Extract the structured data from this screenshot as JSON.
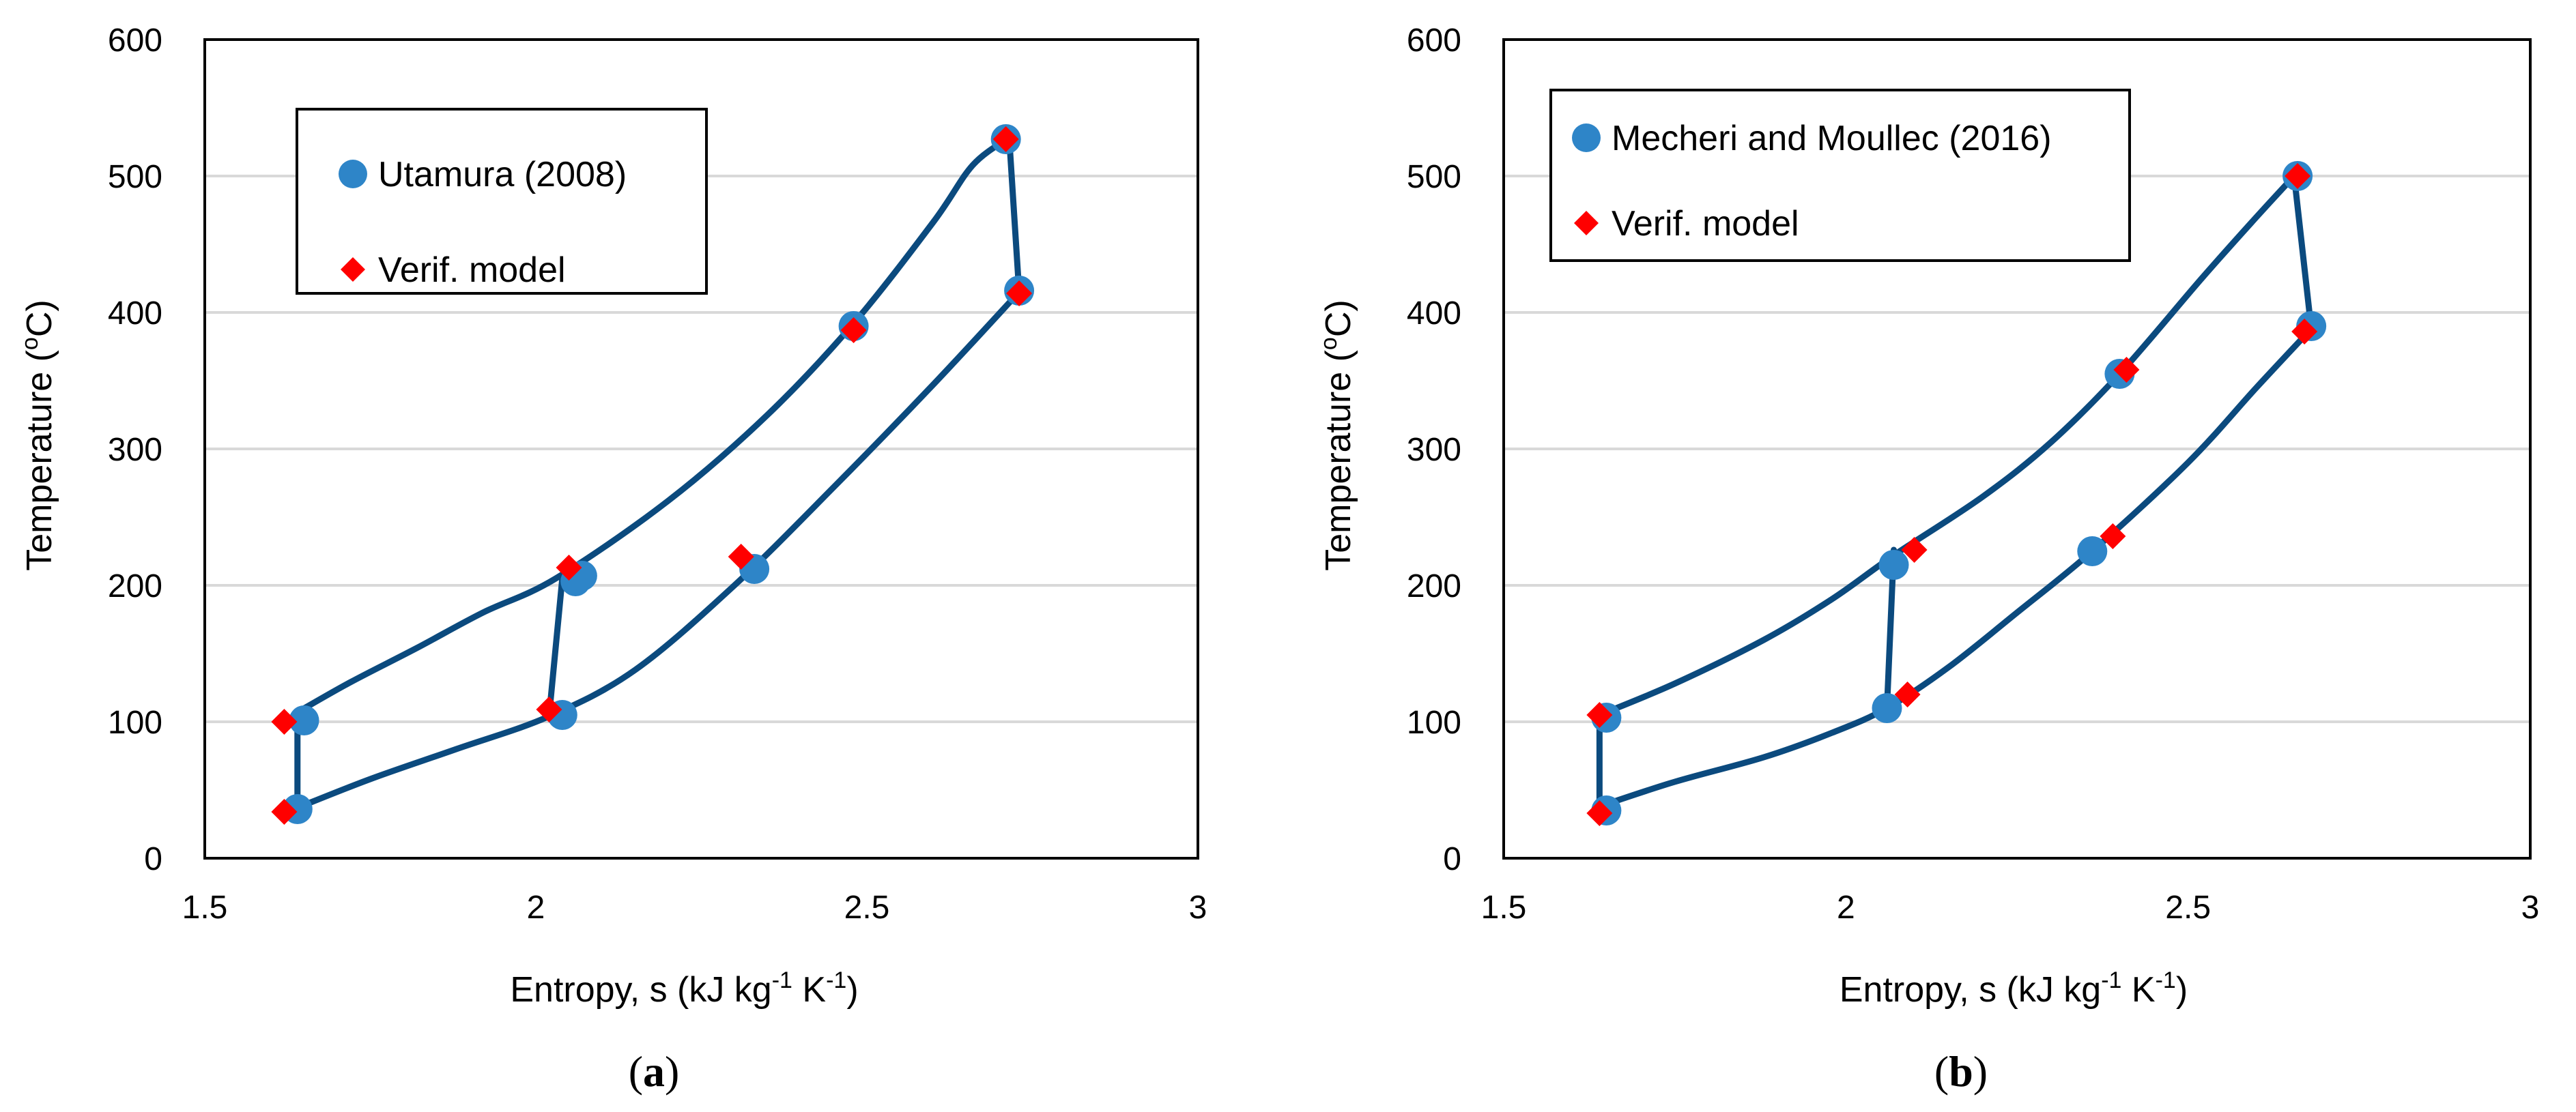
{
  "chart_data": [
    {
      "type": "scatter",
      "panel_label": "a",
      "xlabel": "Entropy, s (kJ kg-1 K-1)",
      "xlabel_parts": [
        "Entropy, s (kJ kg",
        "-1",
        " K",
        "-1",
        ")"
      ],
      "ylabel": "Temperature (oC)",
      "ylabel_parts": [
        "Temperature (",
        "o",
        "C)"
      ],
      "xlim": [
        1.5,
        3
      ],
      "ylim": [
        0,
        600
      ],
      "xticks": [
        "1.5",
        "2",
        "2.5",
        "3"
      ],
      "yticks": [
        "0",
        "100",
        "200",
        "300",
        "400",
        "500",
        "600"
      ],
      "grid": "horizontal",
      "legend_position": "top-left",
      "cycle_line": {
        "color": "#0b4a7e",
        "high_curve": [
          [
            1.64,
            107
          ],
          [
            1.72,
            129
          ],
          [
            1.82,
            154
          ],
          [
            1.92,
            180
          ],
          [
            2.03,
            205
          ],
          [
            2.2,
            262
          ],
          [
            2.35,
            325
          ],
          [
            2.48,
            392
          ],
          [
            2.6,
            466
          ],
          [
            2.66,
            508
          ],
          [
            2.715,
            528
          ]
        ],
        "turbine": [
          [
            2.715,
            528
          ],
          [
            2.73,
            415
          ]
        ],
        "low_curve": [
          [
            1.64,
            37
          ],
          [
            1.75,
            58
          ],
          [
            1.88,
            80
          ],
          [
            2.02,
            104
          ],
          [
            2.15,
            138
          ],
          [
            2.3,
            200
          ],
          [
            2.45,
            272
          ],
          [
            2.6,
            347
          ],
          [
            2.73,
            415
          ]
        ],
        "verticals": [
          [
            [
              1.64,
              37
            ],
            [
              1.64,
              107
            ]
          ],
          [
            [
              2.02,
              104
            ],
            [
              2.04,
              205
            ]
          ]
        ]
      },
      "series": [
        {
          "name": "Utamura (2008)",
          "marker": "circle",
          "color": "#2e85c8",
          "x": [
            1.64,
            1.65,
            2.04,
            2.06,
            2.07,
            2.33,
            2.48,
            2.71,
            2.73
          ],
          "y": [
            36,
            101,
            105,
            203,
            207,
            212,
            390,
            527,
            416
          ]
        },
        {
          "name": "Verif. model",
          "marker": "diamond",
          "color": "#ff0000",
          "x": [
            1.62,
            1.62,
            2.02,
            2.05,
            2.31,
            2.48,
            2.71,
            2.73
          ],
          "y": [
            34,
            100,
            109,
            213,
            221,
            387,
            527,
            414
          ]
        }
      ]
    },
    {
      "type": "scatter",
      "panel_label": "b",
      "xlabel": "Entropy, s (kJ kg-1 K-1)",
      "xlabel_parts": [
        "Entropy, s (kJ kg",
        "-1",
        " K",
        "-1",
        ")"
      ],
      "ylabel": "Temperature (oC)",
      "ylabel_parts": [
        "Temperature (",
        "o",
        "C)"
      ],
      "xlim": [
        1.5,
        3
      ],
      "ylim": [
        0,
        600
      ],
      "xticks": [
        "1.5",
        "2",
        "2.5",
        "3"
      ],
      "yticks": [
        "0",
        "100",
        "200",
        "300",
        "400",
        "500",
        "600"
      ],
      "grid": "horizontal",
      "legend_position": "top-left",
      "cycle_line": {
        "color": "#0b4a7e",
        "high_curve": [
          [
            1.64,
            105
          ],
          [
            1.75,
            128
          ],
          [
            1.88,
            160
          ],
          [
            1.98,
            190
          ],
          [
            2.07,
            222
          ],
          [
            2.2,
            265
          ],
          [
            2.3,
            305
          ],
          [
            2.4,
            355
          ],
          [
            2.52,
            425
          ],
          [
            2.6,
            470
          ],
          [
            2.655,
            500
          ]
        ],
        "turbine": [
          [
            2.655,
            500
          ],
          [
            2.68,
            388
          ]
        ],
        "low_curve": [
          [
            1.64,
            38
          ],
          [
            1.75,
            56
          ],
          [
            1.88,
            74
          ],
          [
            1.98,
            92
          ],
          [
            2.06,
            110
          ],
          [
            2.15,
            140
          ],
          [
            2.25,
            180
          ],
          [
            2.36,
            225
          ],
          [
            2.5,
            290
          ],
          [
            2.6,
            345
          ],
          [
            2.68,
            388
          ]
        ],
        "verticals": [
          [
            [
              1.64,
              38
            ],
            [
              1.64,
              105
            ]
          ],
          [
            [
              2.06,
              110
            ],
            [
              2.07,
              226
            ]
          ]
        ]
      },
      "series": [
        {
          "name": "Mecheri and Moullec (2016)",
          "marker": "circle",
          "color": "#2e85c8",
          "x": [
            1.65,
            1.65,
            2.06,
            2.07,
            2.36,
            2.4,
            2.66,
            2.68
          ],
          "y": [
            35,
            103,
            110,
            215,
            225,
            355,
            500,
            390
          ]
        },
        {
          "name": "Verif. model",
          "marker": "diamond",
          "color": "#ff0000",
          "x": [
            1.64,
            1.64,
            2.09,
            2.1,
            2.39,
            2.41,
            2.66,
            2.67
          ],
          "y": [
            33,
            105,
            120,
            226,
            236,
            358,
            500,
            386
          ]
        }
      ]
    }
  ]
}
